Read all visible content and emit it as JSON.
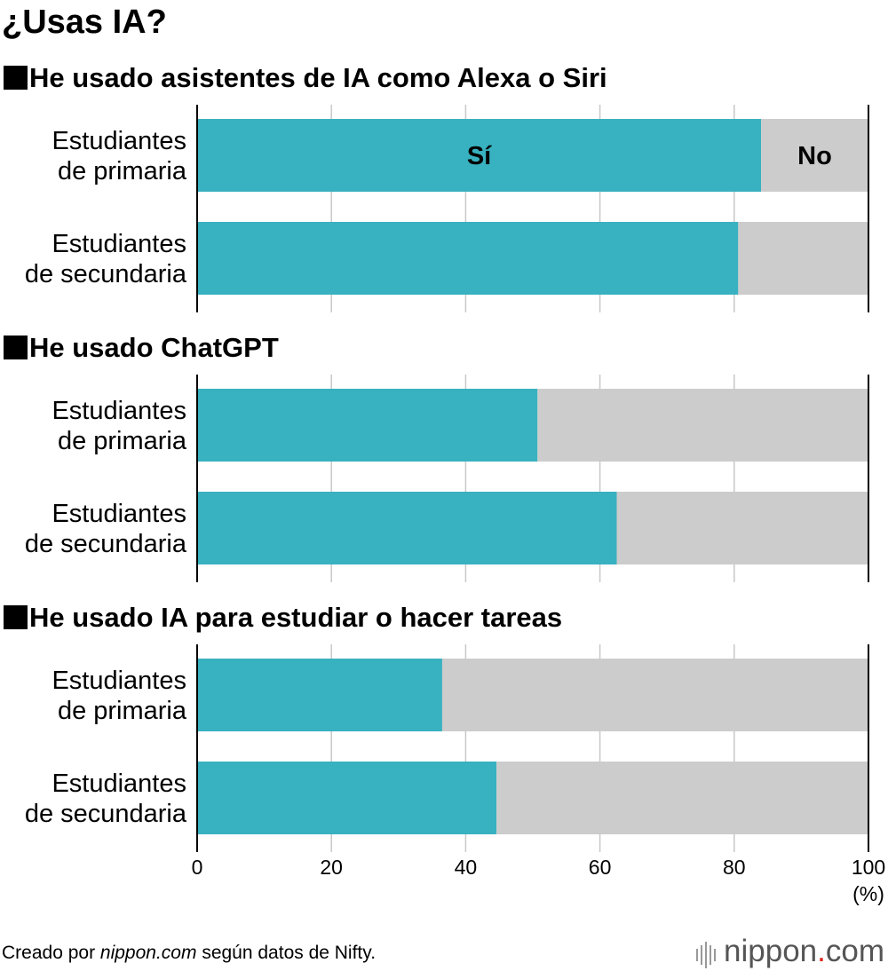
{
  "title": "¿Usas IA?",
  "footer": {
    "prefix": "Creado por ",
    "site": "nippon.com",
    "suffix": " según datos de Nifty."
  },
  "brand": {
    "name": "nippon",
    "dot": ".",
    "tld": "com"
  },
  "colors": {
    "yes": "#38b1c0",
    "no": "#cccccc",
    "grid": "#c8c8c8",
    "axis": "#000000"
  },
  "chart_data": {
    "type": "bar",
    "orientation": "horizontal",
    "stacked": true,
    "xlim": [
      0,
      100
    ],
    "x_ticks": [
      "0",
      "20",
      "40",
      "60",
      "80",
      "100"
    ],
    "unit_label": "(%)",
    "legend": {
      "yes": "Sí",
      "no": "No"
    },
    "grid": true,
    "panels": [
      {
        "title": "He usado asistentes de IA como Alexa o Siri",
        "categories": [
          [
            "Estudiantes",
            "de primaria"
          ],
          [
            "Estudiantes",
            "de secundaria"
          ]
        ],
        "series": [
          {
            "name": "Sí",
            "values": [
              84,
              80.6
            ]
          },
          {
            "name": "No",
            "values": [
              16,
              19.4
            ]
          }
        ]
      },
      {
        "title": "He usado ChatGPT",
        "categories": [
          [
            "Estudiantes",
            "de primaria"
          ],
          [
            "Estudiantes",
            "de secundaria"
          ]
        ],
        "series": [
          {
            "name": "Sí",
            "values": [
              50.7,
              62.5
            ]
          },
          {
            "name": "No",
            "values": [
              49.3,
              37.5
            ]
          }
        ]
      },
      {
        "title": "He usado IA para estudiar o hacer tareas",
        "categories": [
          [
            "Estudiantes",
            "de primaria"
          ],
          [
            "Estudiantes",
            "de secundaria"
          ]
        ],
        "series": [
          {
            "name": "Sí",
            "values": [
              36.5,
              44.6
            ]
          },
          {
            "name": "No",
            "values": [
              63.5,
              55.4
            ]
          }
        ]
      }
    ]
  }
}
